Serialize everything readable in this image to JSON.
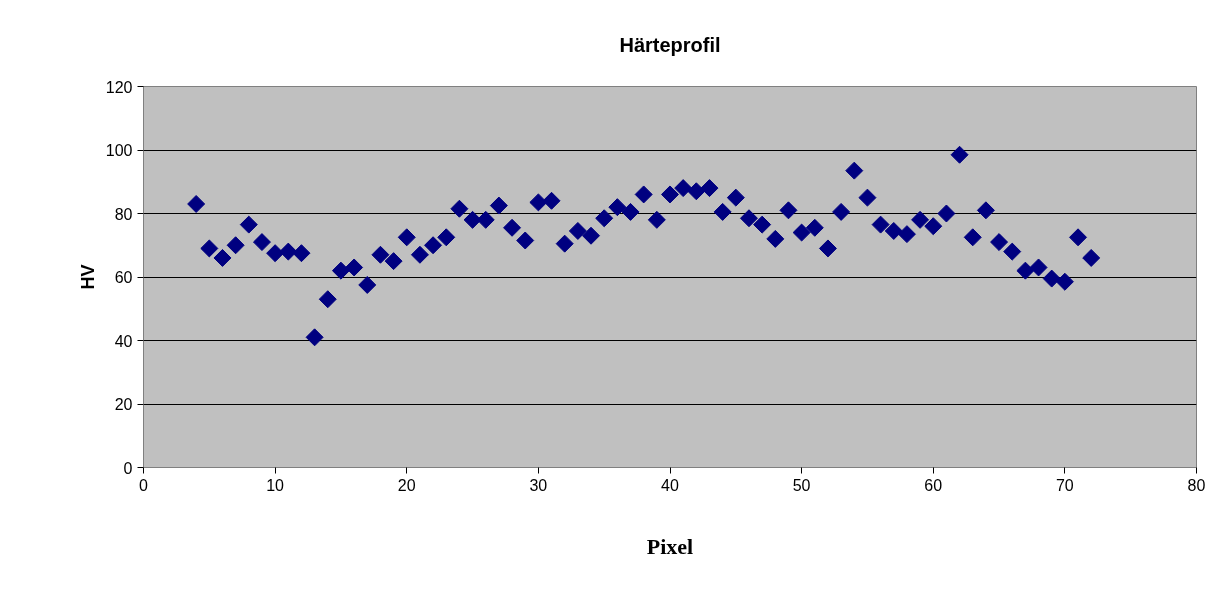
{
  "chart_data": {
    "type": "scatter",
    "title": "Härteprofil",
    "xlabel": "Pixel",
    "ylabel": "HV",
    "x": [
      4,
      5,
      6,
      7,
      8,
      9,
      10,
      11,
      12,
      13,
      14,
      15,
      16,
      17,
      18,
      19,
      20,
      21,
      22,
      23,
      24,
      25,
      26,
      27,
      28,
      29,
      30,
      31,
      32,
      33,
      34,
      35,
      36,
      37,
      38,
      39,
      40,
      41,
      42,
      43,
      44,
      45,
      46,
      47,
      48,
      49,
      50,
      51,
      52,
      53,
      54,
      55,
      56,
      57,
      58,
      59,
      60,
      61,
      62,
      63,
      64,
      65,
      66,
      67,
      68,
      69,
      70,
      71,
      72
    ],
    "series": [
      {
        "color": "#000080",
        "values": [
          83,
          69,
          66,
          70,
          76.5,
          71,
          67.5,
          68,
          67.5,
          41,
          53,
          62,
          63,
          57.5,
          67,
          65,
          72.5,
          67,
          70,
          72.5,
          81.5,
          78,
          78,
          82.5,
          75.5,
          71.5,
          83.5,
          84,
          70.5,
          74.5,
          73,
          78.5,
          82,
          80.5,
          86,
          78,
          86,
          88,
          87,
          88,
          80.5,
          85,
          78.5,
          76.5,
          72,
          81,
          74,
          75.5,
          69,
          80.5,
          93.5,
          85,
          76.5,
          74.5,
          73.5,
          78,
          76,
          80,
          98.5,
          72.5,
          81,
          71,
          68,
          62,
          63,
          59.5,
          58.5,
          72.5,
          66
        ]
      }
    ],
    "xlim": [
      0,
      80
    ],
    "xticks": [
      0,
      10,
      20,
      30,
      40,
      50,
      60,
      70,
      80
    ],
    "ylim": [
      0,
      120
    ],
    "yticks": [
      0,
      20,
      40,
      60,
      80,
      100,
      120
    ],
    "grid": "y",
    "marker": "diamond"
  }
}
